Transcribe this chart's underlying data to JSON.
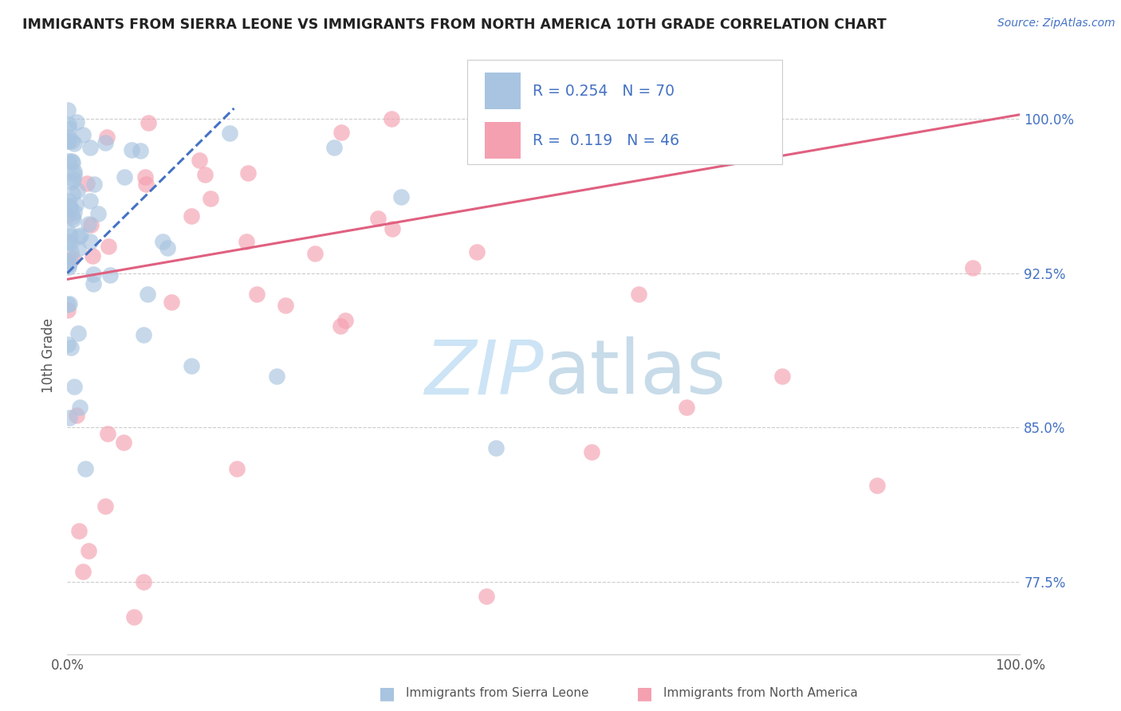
{
  "title": "IMMIGRANTS FROM SIERRA LEONE VS IMMIGRANTS FROM NORTH AMERICA 10TH GRADE CORRELATION CHART",
  "source_text": "Source: ZipAtlas.com",
  "ylabel": "10th Grade",
  "blue_R": "0.254",
  "blue_N": "70",
  "pink_R": "0.119",
  "pink_N": "46",
  "blue_color": "#a8c4e0",
  "pink_color": "#f4a0b0",
  "blue_line_color": "#4472c4",
  "pink_line_color": "#e06080",
  "watermark_color": "#cce4f5",
  "background_color": "#ffffff",
  "xlim": [
    0.0,
    1.0
  ],
  "ylim": [
    0.74,
    1.03
  ],
  "yticks": [
    0.775,
    0.85,
    0.925,
    1.0
  ],
  "ytick_labels": [
    "77.5%",
    "85.0%",
    "92.5%",
    "100.0%"
  ],
  "blue_line_x": [
    0.0,
    0.175
  ],
  "blue_line_y": [
    0.925,
    1.005
  ],
  "pink_line_x": [
    0.0,
    1.0
  ],
  "pink_line_y": [
    0.922,
    1.002
  ]
}
